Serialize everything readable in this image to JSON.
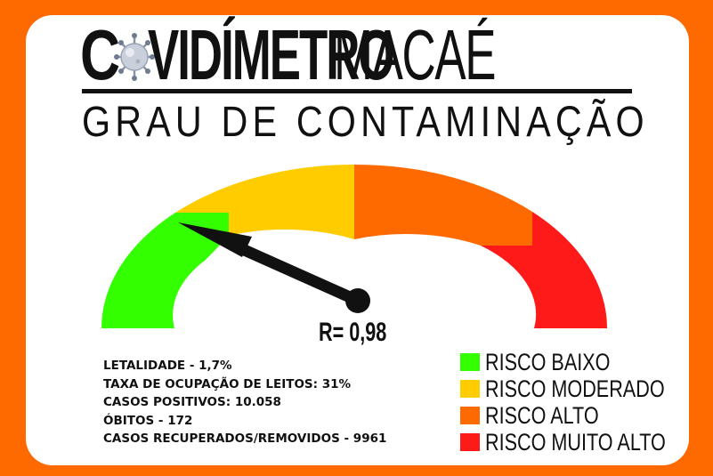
{
  "logo": {
    "letter_c": "C",
    "covid_rest": "VIDÍMETRO",
    "city": "MACAÉ",
    "virus_icon": "coronavirus-icon"
  },
  "subtitle": "GRAU DE CONTAMINAÇÃO",
  "gauge": {
    "r_value_label": "R= 0,98",
    "r_value": 0.98,
    "segments": [
      {
        "name": "baixo",
        "color": "#33FF00"
      },
      {
        "name": "moderado",
        "color": "#FFCC00"
      },
      {
        "name": "alto",
        "color": "#FF6A00"
      },
      {
        "name": "muito-alto",
        "color": "#FF1A1A"
      }
    ]
  },
  "stats": [
    "LETALIDADE - 1,7%",
    "TAXA DE OCUPAÇÃO DE LEITOS: 31%",
    "CASOS POSITIVOS: 10.058",
    "ÓBITOS - 172",
    "CASOS RECUPERADOS/REMOVIDOS - 9961"
  ],
  "legend": [
    {
      "label": "RISCO BAIXO",
      "color": "#33FF00"
    },
    {
      "label": "RISCO MODERADO",
      "color": "#FFCC00"
    },
    {
      "label": "RISCO ALTO",
      "color": "#FF6A00"
    },
    {
      "label": "RISCO MUITO ALTO",
      "color": "#FF1A1A"
    }
  ],
  "colors": {
    "background": "#FF6A00",
    "card": "#FFFFFF",
    "ink": "#111111"
  }
}
